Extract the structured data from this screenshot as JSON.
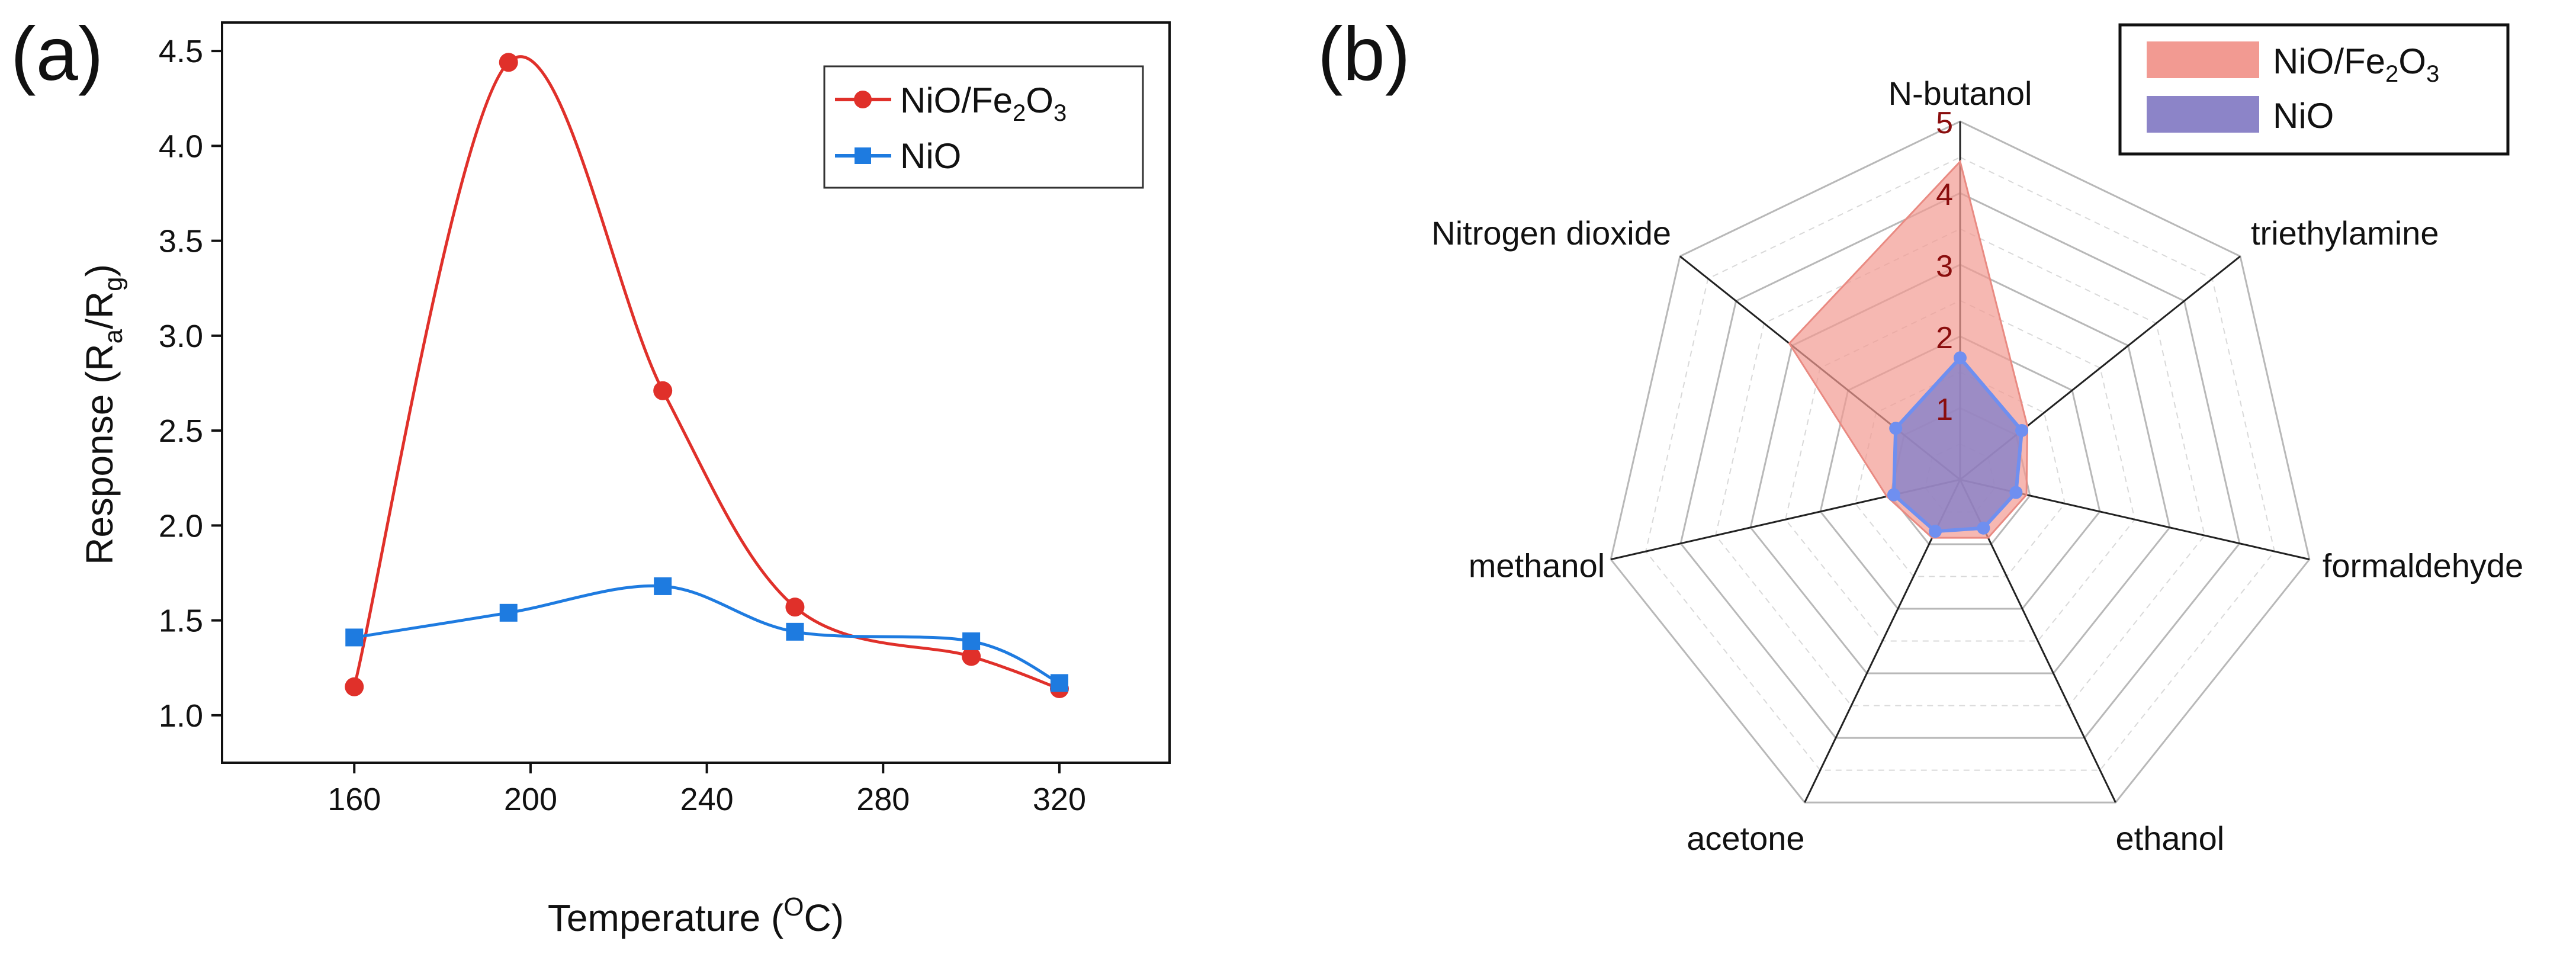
{
  "colors": {
    "nio_fe2o3_line": "#e0302a",
    "nio_line": "#1e7be0",
    "radar_nio_fe2o3_fill": "#f29a92",
    "radar_nio_fill": "#8c84c8",
    "radar_nio_edge": "#6f8ff0",
    "axis": "#111111",
    "grid": "#b8b8b8"
  },
  "chart_data": [
    {
      "panel_label": "(a)",
      "type": "line",
      "xlabel": {
        "main": "Temperature (",
        "sup": "O",
        "tail": "C)"
      },
      "ylabel": {
        "main": "Response (R",
        "sub1": "a",
        "mid": "/R",
        "sub2": "g",
        "tail": ")"
      },
      "xlim": [
        130,
        345
      ],
      "ylim": [
        0.75,
        4.65
      ],
      "xticks": [
        160,
        200,
        240,
        280,
        320
      ],
      "xtick_labels": [
        "160",
        "200",
        "240",
        "280",
        "320"
      ],
      "yticks": [
        1.0,
        1.5,
        2.0,
        2.5,
        3.0,
        3.5,
        4.0,
        4.5
      ],
      "ytick_labels": [
        "1.0",
        "1.5",
        "2.0",
        "2.5",
        "3.0",
        "3.5",
        "4.0",
        "4.5"
      ],
      "legend_position": "top-right",
      "series": [
        {
          "name": "NiO/Fe2O3",
          "label_main": "NiO/Fe",
          "sub1": "2",
          "label_mid": "O",
          "sub2": "3",
          "marker": "circle",
          "x": [
            160,
            195,
            230,
            260,
            300,
            320
          ],
          "y": [
            1.15,
            4.44,
            2.71,
            1.57,
            1.31,
            1.14
          ]
        },
        {
          "name": "NiO",
          "label_main": "NiO",
          "marker": "square",
          "x": [
            160,
            195,
            230,
            260,
            300,
            320
          ],
          "y": [
            1.41,
            1.54,
            1.68,
            1.44,
            1.39,
            1.17
          ]
        }
      ]
    },
    {
      "panel_label": "(b)",
      "type": "radar",
      "categories": [
        "N-butanol",
        "triethylamine",
        "formaldehyde",
        "ethanol",
        "acetone",
        "methanol",
        "Nitrogen dioxide"
      ],
      "rmax": 5,
      "rings": [
        1,
        2,
        3,
        4,
        5
      ],
      "ring_labels": [
        "1",
        "2",
        "3",
        "4",
        "5"
      ],
      "legend_position": "top-right",
      "series": [
        {
          "name": "NiO/Fe2O3",
          "label_main": "NiO/Fe",
          "sub1": "2",
          "label_mid": "O",
          "sub2": "3",
          "values": [
            4.44,
            1.2,
            0.95,
            0.9,
            0.9,
            1.05,
            3.05
          ]
        },
        {
          "name": "NiO",
          "label_main": "NiO",
          "values": [
            1.7,
            1.1,
            0.8,
            0.75,
            0.8,
            0.95,
            1.15
          ]
        }
      ]
    }
  ]
}
